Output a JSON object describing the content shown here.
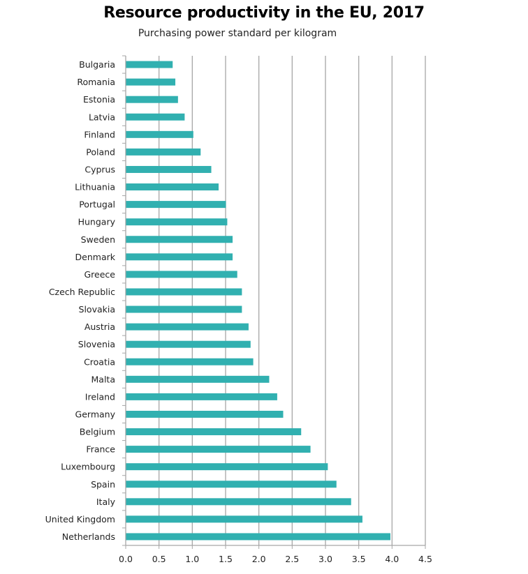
{
  "chart_data": {
    "type": "bar",
    "orientation": "horizontal",
    "title": "Resource productivity in the EU, 2017",
    "subtitle": "Purchasing power standard per kilogram",
    "categories": [
      "Bulgaria",
      "Romania",
      "Estonia",
      "Latvia",
      "Finland",
      "Poland",
      "Cyprus",
      "Lithuania",
      "Portugal",
      "Hungary",
      "Sweden",
      "Denmark",
      "Greece",
      "Czech Republic",
      "Slovakia",
      "Austria",
      "Slovenia",
      "Croatia",
      "Malta",
      "Ireland",
      "Germany",
      "Belgium",
      "France",
      "Luxembourg",
      "Spain",
      "Italy",
      "United Kingdom",
      "Netherlands"
    ],
    "values": [
      0.7,
      0.74,
      0.78,
      0.88,
      1.01,
      1.12,
      1.28,
      1.39,
      1.5,
      1.52,
      1.6,
      1.6,
      1.67,
      1.74,
      1.74,
      1.84,
      1.87,
      1.91,
      2.15,
      2.27,
      2.36,
      2.63,
      2.77,
      3.03,
      3.16,
      3.38,
      3.55,
      3.97
    ],
    "xlim": [
      0,
      4.5
    ],
    "xticks": [
      "0.0",
      "0.5",
      "1.0",
      "1.5",
      "2.0",
      "2.5",
      "3.0",
      "3.5",
      "4.0",
      "4.5"
    ],
    "grid": "vertical",
    "bar_color": "#31b0b0",
    "xlabel": "",
    "ylabel": ""
  }
}
